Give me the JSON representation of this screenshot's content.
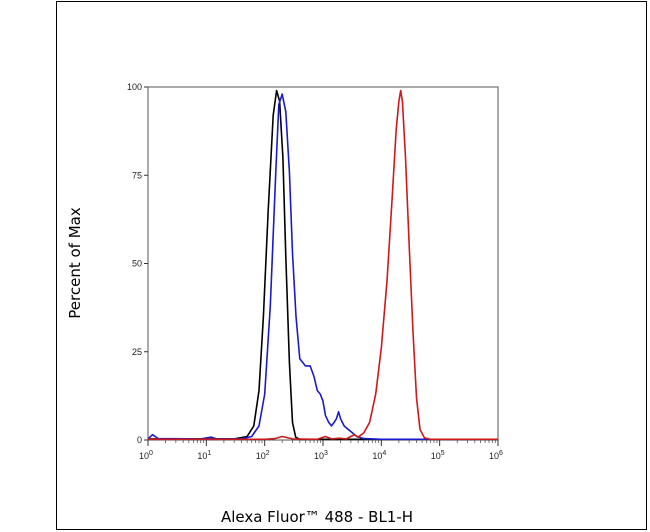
{
  "chart_data": {
    "type": "line",
    "title": "",
    "xlabel": "Alexa Fluor™ 488 - BL1-H",
    "ylabel": "Percent of Max",
    "x_scale": "log",
    "xlim": [
      1,
      1000000
    ],
    "ylim": [
      0,
      100
    ],
    "y_ticks": [
      "0",
      "25",
      "50",
      "75",
      "100"
    ],
    "x_ticks": [
      {
        "base": "10",
        "exp": "0"
      },
      {
        "base": "10",
        "exp": "1"
      },
      {
        "base": "10",
        "exp": "2"
      },
      {
        "base": "10",
        "exp": "3"
      },
      {
        "base": "10",
        "exp": "4"
      },
      {
        "base": "10",
        "exp": "5"
      },
      {
        "base": "10",
        "exp": "6"
      }
    ],
    "grid": false,
    "legend": "none",
    "series": [
      {
        "color": "#000000",
        "points": [
          [
            1,
            0.3
          ],
          [
            30,
            0.3
          ],
          [
            50,
            1
          ],
          [
            65,
            4
          ],
          [
            80,
            14
          ],
          [
            95,
            35
          ],
          [
            115,
            65
          ],
          [
            140,
            92
          ],
          [
            160,
            99
          ],
          [
            180,
            96
          ],
          [
            205,
            80
          ],
          [
            230,
            52
          ],
          [
            265,
            22
          ],
          [
            300,
            5
          ],
          [
            340,
            0.8
          ],
          [
            400,
            0.2
          ],
          [
            1000000,
            0.2
          ]
        ]
      },
      {
        "color": "#1a1acc",
        "points": [
          [
            1,
            0.3
          ],
          [
            1.2,
            1.5
          ],
          [
            1.5,
            0.4
          ],
          [
            8,
            0.3
          ],
          [
            12,
            0.8
          ],
          [
            15,
            0.3
          ],
          [
            40,
            0.3
          ],
          [
            60,
            1
          ],
          [
            80,
            4
          ],
          [
            100,
            13
          ],
          [
            125,
            38
          ],
          [
            155,
            76
          ],
          [
            175,
            95
          ],
          [
            200,
            98
          ],
          [
            230,
            93
          ],
          [
            265,
            76
          ],
          [
            300,
            53
          ],
          [
            345,
            35
          ],
          [
            400,
            23
          ],
          [
            500,
            21
          ],
          [
            600,
            21
          ],
          [
            700,
            18
          ],
          [
            800,
            14
          ],
          [
            900,
            13
          ],
          [
            1000,
            11
          ],
          [
            1100,
            7
          ],
          [
            1250,
            5
          ],
          [
            1400,
            4
          ],
          [
            1550,
            5
          ],
          [
            1700,
            6
          ],
          [
            1850,
            8
          ],
          [
            2000,
            6
          ],
          [
            2300,
            4
          ],
          [
            2700,
            3
          ],
          [
            3200,
            2
          ],
          [
            3800,
            1
          ],
          [
            5000,
            0.4
          ],
          [
            10000,
            0.2
          ],
          [
            1000000,
            0.2
          ]
        ]
      },
      {
        "color": "#cc1a1a",
        "points": [
          [
            1,
            0.2
          ],
          [
            100,
            0.2
          ],
          [
            150,
            0.4
          ],
          [
            200,
            1
          ],
          [
            300,
            0.3
          ],
          [
            800,
            0.2
          ],
          [
            1100,
            1
          ],
          [
            1400,
            0.3
          ],
          [
            1900,
            0.5
          ],
          [
            2500,
            0.3
          ],
          [
            3000,
            1
          ],
          [
            3500,
            1.5
          ],
          [
            4000,
            0.8
          ],
          [
            5000,
            2
          ],
          [
            6300,
            5
          ],
          [
            8000,
            13
          ],
          [
            10000,
            26
          ],
          [
            12500,
            45
          ],
          [
            15000,
            66
          ],
          [
            18000,
            88
          ],
          [
            20000,
            96
          ],
          [
            21500,
            99
          ],
          [
            23000,
            96
          ],
          [
            26000,
            80
          ],
          [
            30000,
            55
          ],
          [
            35000,
            30
          ],
          [
            40000,
            12
          ],
          [
            46000,
            3
          ],
          [
            55000,
            0.6
          ],
          [
            70000,
            0.2
          ],
          [
            1000000,
            0.2
          ]
        ]
      }
    ]
  }
}
